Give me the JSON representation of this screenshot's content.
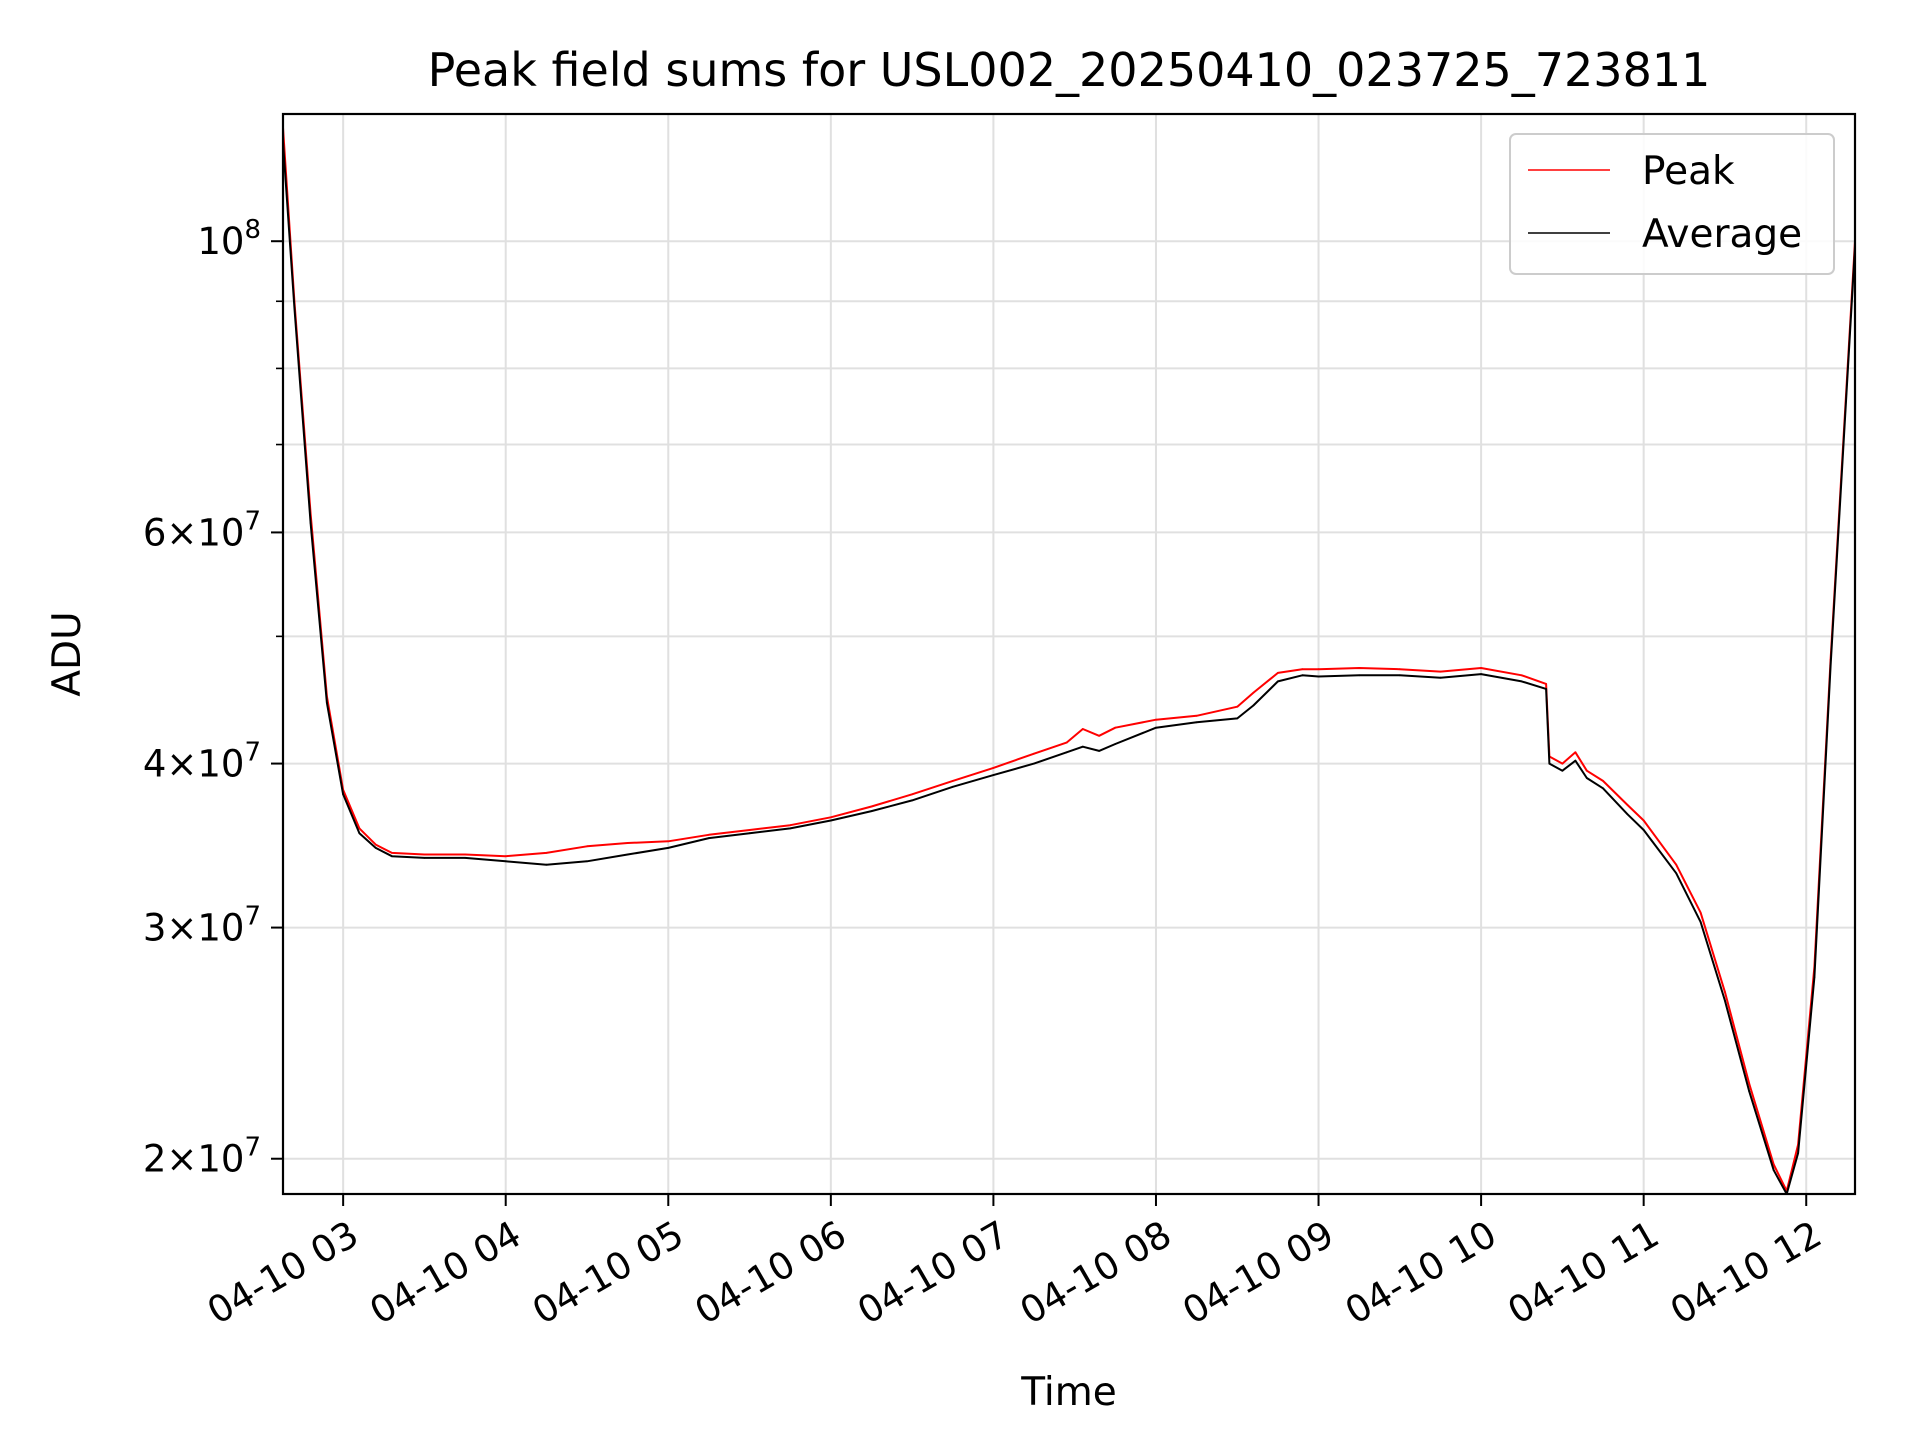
{
  "chart_data": {
    "type": "line",
    "title": "Peak field sums for USL002_20250410_023725_723811",
    "xlabel": "Time",
    "ylabel": "ADU",
    "yscale": "log",
    "xlim_hours": [
      2.63,
      12.3
    ],
    "ylim": [
      18800000,
      125000000
    ],
    "grid": true,
    "legend": {
      "position": "top-right",
      "entries": [
        "Peak",
        "Average"
      ]
    },
    "x_ticks": [
      {
        "hour": 3,
        "label": "04-10 03"
      },
      {
        "hour": 4,
        "label": "04-10 04"
      },
      {
        "hour": 5,
        "label": "04-10 05"
      },
      {
        "hour": 6,
        "label": "04-10 06"
      },
      {
        "hour": 7,
        "label": "04-10 07"
      },
      {
        "hour": 8,
        "label": "04-10 08"
      },
      {
        "hour": 9,
        "label": "04-10 09"
      },
      {
        "hour": 10,
        "label": "04-10 10"
      },
      {
        "hour": 11,
        "label": "04-10 11"
      },
      {
        "hour": 12,
        "label": "04-10 12"
      }
    ],
    "y_ticks": [
      {
        "value": 20000000,
        "mant": "2",
        "exp": "7"
      },
      {
        "value": 30000000,
        "mant": "3",
        "exp": "7"
      },
      {
        "value": 40000000,
        "mant": "4",
        "exp": "7"
      },
      {
        "value": 60000000,
        "mant": "6",
        "exp": "7"
      },
      {
        "value": 100000000,
        "mant": "",
        "exp": "8"
      }
    ],
    "y_minor_ticks": [
      50000000,
      70000000,
      80000000,
      90000000
    ],
    "series": [
      {
        "name": "Peak",
        "color": "#ff0000",
        "x_hours": [
          2.63,
          2.7,
          2.8,
          2.9,
          3.0,
          3.1,
          3.2,
          3.3,
          3.5,
          3.75,
          4.0,
          4.25,
          4.5,
          4.75,
          5.0,
          5.25,
          5.5,
          5.75,
          6.0,
          6.25,
          6.5,
          6.75,
          7.0,
          7.25,
          7.45,
          7.55,
          7.65,
          7.75,
          8.0,
          8.25,
          8.5,
          8.6,
          8.75,
          8.9,
          9.0,
          9.25,
          9.5,
          9.75,
          10.0,
          10.25,
          10.4,
          10.42,
          10.5,
          10.58,
          10.65,
          10.75,
          10.9,
          11.0,
          11.2,
          11.35,
          11.5,
          11.65,
          11.8,
          11.88,
          11.95,
          12.05,
          12.15,
          12.3
        ],
        "values": [
          122000000,
          90000000,
          62000000,
          45000000,
          38200000,
          35700000,
          34700000,
          34200000,
          34100000,
          34100000,
          34000000,
          34200000,
          34600000,
          34800000,
          34900000,
          35300000,
          35600000,
          35900000,
          36400000,
          37100000,
          37900000,
          38800000,
          39700000,
          40700000,
          41500000,
          42500000,
          42000000,
          42600000,
          43200000,
          43500000,
          44200000,
          45300000,
          46900000,
          47200000,
          47200000,
          47300000,
          47200000,
          47000000,
          47300000,
          46700000,
          46000000,
          40500000,
          40000000,
          40800000,
          39500000,
          38800000,
          37200000,
          36200000,
          33500000,
          30800000,
          26800000,
          22800000,
          19800000,
          18900000,
          20500000,
          28000000,
          48000000,
          100000000
        ]
      },
      {
        "name": "Average",
        "color": "#000000",
        "x_hours": [
          2.63,
          2.7,
          2.8,
          2.9,
          3.0,
          3.1,
          3.2,
          3.3,
          3.5,
          3.75,
          4.0,
          4.25,
          4.5,
          4.75,
          5.0,
          5.25,
          5.5,
          5.75,
          6.0,
          6.25,
          6.5,
          6.75,
          7.0,
          7.25,
          7.45,
          7.55,
          7.65,
          7.75,
          8.0,
          8.25,
          8.5,
          8.6,
          8.75,
          8.9,
          9.0,
          9.25,
          9.5,
          9.75,
          10.0,
          10.25,
          10.4,
          10.42,
          10.5,
          10.58,
          10.65,
          10.75,
          10.9,
          11.0,
          11.2,
          11.35,
          11.5,
          11.65,
          11.8,
          11.88,
          11.95,
          12.05,
          12.15,
          12.3
        ],
        "values": [
          119000000,
          89000000,
          61000000,
          44500000,
          37900000,
          35400000,
          34500000,
          34000000,
          33900000,
          33900000,
          33700000,
          33500000,
          33700000,
          34100000,
          34500000,
          35100000,
          35400000,
          35700000,
          36200000,
          36800000,
          37500000,
          38400000,
          39200000,
          40000000,
          40800000,
          41200000,
          40900000,
          41400000,
          42600000,
          43000000,
          43300000,
          44300000,
          46200000,
          46700000,
          46600000,
          46700000,
          46700000,
          46500000,
          46800000,
          46200000,
          45600000,
          40000000,
          39500000,
          40200000,
          39000000,
          38300000,
          36600000,
          35600000,
          33000000,
          30300000,
          26400000,
          22500000,
          19600000,
          18800000,
          20200000,
          27500000,
          47500000,
          99000000
        ]
      }
    ]
  }
}
